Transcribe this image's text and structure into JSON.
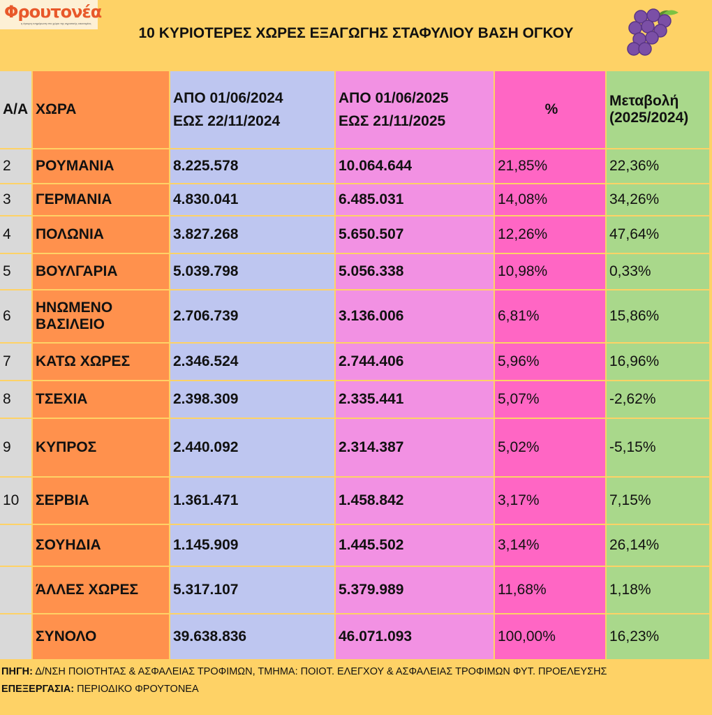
{
  "logo": {
    "name": "Φρουτονέα",
    "tagline": "η έγκυρη ενημέρωση στο χώρο της αγροτικής οικονομίας"
  },
  "title": "10 ΚΥΡΙΟΤΕΡΕΣ ΧΩΡΕΣ ΕΞΑΓΩΓΗΣ ΣΤΑΦΥΛΙΟΥ ΒΑΣΗ ΟΓΚΟΥ",
  "colors": {
    "background": "#fed266",
    "aa": "#d9d9d9",
    "country": "#ff914d",
    "y2024": "#bec6f0",
    "y2025": "#f291e3",
    "share": "#ff66c4",
    "change": "#a9d88b"
  },
  "headers": {
    "aa": "Α/Α",
    "country": "ΧΩΡΑ",
    "y2024_line1": "ΑΠΟ 01/06/2024",
    "y2024_line2": "ΕΩΣ  22/11/2024",
    "y2025_line1": "ΑΠΟ 01/06/2025",
    "y2025_line2": "ΕΩΣ  21/11/2025",
    "share": "%",
    "change_line1": "Μεταβολή",
    "change_line2": "(2025/2024)"
  },
  "rows": [
    {
      "aa": "2",
      "country": "ΡΟΥΜΑΝΙΑ",
      "y2024": "8.225.578",
      "y2025": "10.064.644",
      "share": "21,85%",
      "change": "22,36%"
    },
    {
      "aa": "3",
      "country": "ΓΕΡΜΑΝΙΑ",
      "y2024": "4.830.041",
      "y2025": "6.485.031",
      "share": "14,08%",
      "change": "34,26%"
    },
    {
      "aa": "4",
      "country": "ΠΟΛΩΝΙΑ",
      "y2024": "3.827.268",
      "y2025": "5.650.507",
      "share": "12,26%",
      "change": "47,64%"
    },
    {
      "aa": "5",
      "country": "ΒΟΥΛΓΑΡΙΑ",
      "y2024": "5.039.798",
      "y2025": "5.056.338",
      "share": "10,98%",
      "change": "0,33%"
    },
    {
      "aa": "6",
      "country": "ΗΝΩΜΕΝΟ ΒΑΣΙΛΕΙΟ",
      "y2024": "2.706.739",
      "y2025": "3.136.006",
      "share": "6,81%",
      "change": "15,86%"
    },
    {
      "aa": "7",
      "country": "ΚΑΤΩ ΧΩΡΕΣ",
      "y2024": "2.346.524",
      "y2025": "2.744.406",
      "share": "5,96%",
      "change": "16,96%"
    },
    {
      "aa": "8",
      "country": "ΤΣΕΧΙΑ",
      "y2024": "2.398.309",
      "y2025": "2.335.441",
      "share": "5,07%",
      "change": "-2,62%"
    },
    {
      "aa": "9",
      "country": "ΚΥΠΡΟΣ",
      "y2024": "2.440.092",
      "y2025": "2.314.387",
      "share": "5,02%",
      "change": "-5,15%"
    },
    {
      "aa": "10",
      "country": "ΣΕΡΒΙΑ",
      "y2024": "1.361.471",
      "y2025": "1.458.842",
      "share": "3,17%",
      "change": "7,15%"
    },
    {
      "aa": "",
      "country": "ΣΟΥΗΔΙΑ",
      "y2024": "1.145.909",
      "y2025": "1.445.502",
      "share": "3,14%",
      "change": "26,14%"
    },
    {
      "aa": "",
      "country": "ΆΛΛΕΣ ΧΩΡΕΣ",
      "y2024": "5.317.107",
      "y2025": "5.379.989",
      "share": "11,68%",
      "change": "1,18%"
    },
    {
      "aa": "",
      "country": "ΣΥΝΟΛΟ",
      "y2024": "39.638.836",
      "y2025": "46.071.093",
      "share": "100,00%",
      "change": "16,23%"
    }
  ],
  "footer": {
    "source_label": "ΠΗΓΗ:",
    "source": " Δ/ΝΣΗ ΠΟΙΟΤΗΤΑΣ & ΑΣΦΑΛΕΙΑΣ ΤΡΟΦΙΜΩΝ, ΤΜΗΜΑ: ΠΟΙΟΤ. ΕΛΕΓΧΟΥ & ΑΣΦΑΛΕΙΑΣ ΤΡΟΦΙΜΩΝ ΦΥΤ. ΠΡΟΕΛΕΥΣΗΣ",
    "processing_label": "ΕΠΕΞΕΡΓΑΣΙΑ:",
    "processing": " ΠΕΡΙΟΔΙΚΟ ΦΡΟΥΤΟΝΕΑ"
  }
}
